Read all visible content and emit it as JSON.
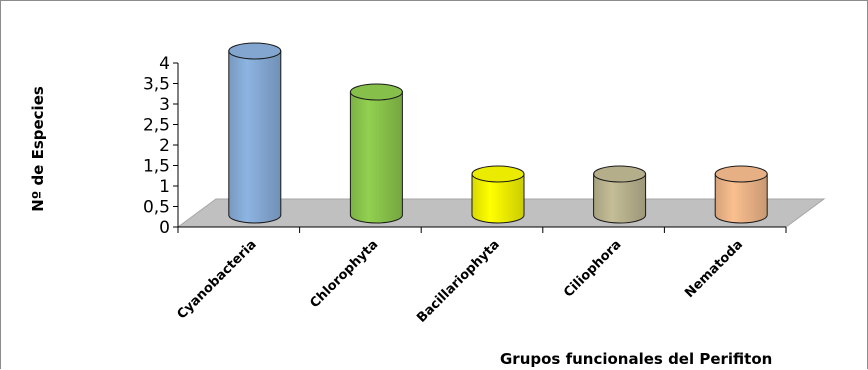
{
  "chart_data": {
    "type": "bar",
    "style": "3d-cylinder",
    "categories": [
      "Cyanobacteria",
      "Chlorophyta",
      "Bacillariophyta",
      "Ciliophora",
      "Nematoda"
    ],
    "series": [
      {
        "values": [
          4,
          3,
          1,
          1,
          1
        ]
      }
    ],
    "colors": [
      "#8db4e2",
      "#92d050",
      "#ffff00",
      "#c4bd97",
      "#fabf8f"
    ],
    "ylabel": "Nº  de  Especies",
    "xlabel": "Grupos  funcionales  del  Perifiton",
    "ylim": [
      0,
      4
    ],
    "yticks": [
      "0",
      "0,5",
      "1",
      "1,5",
      "2",
      "2,5",
      "3",
      "3,5",
      "4"
    ],
    "grid": false,
    "legend": "none",
    "floor_color": "#c0c0c0"
  }
}
